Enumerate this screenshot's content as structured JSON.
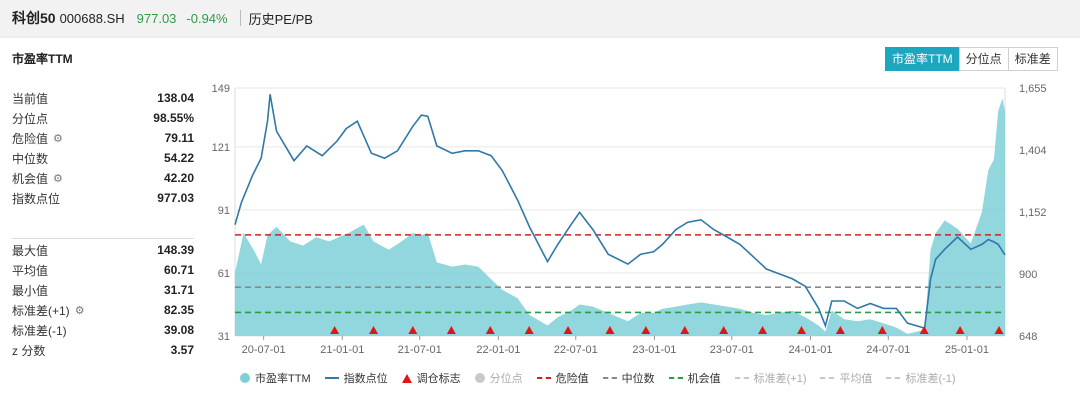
{
  "header": {
    "name": "科创50",
    "code": "000688.SH",
    "price": "977.03",
    "change": "-0.94%",
    "hist_label": "历史PE/PB"
  },
  "card": {
    "title": "市盈率TTM",
    "tabs": [
      "市盈率TTM",
      "分位点",
      "标准差"
    ],
    "active_tab": "市盈率TTM"
  },
  "stats_top": [
    {
      "label": "当前值",
      "value": "138.04",
      "gear": false
    },
    {
      "label": "分位点",
      "value": "98.55%",
      "gear": false
    },
    {
      "label": "危险值",
      "value": "79.11",
      "gear": true
    },
    {
      "label": "中位数",
      "value": "54.22",
      "gear": false
    },
    {
      "label": "机会值",
      "value": "42.20",
      "gear": true
    },
    {
      "label": "指数点位",
      "value": "977.03",
      "gear": false
    }
  ],
  "stats_bottom": [
    {
      "label": "最大值",
      "value": "148.39",
      "gear": false
    },
    {
      "label": "平均值",
      "value": "60.71",
      "gear": false
    },
    {
      "label": "最小值",
      "value": "31.71",
      "gear": false
    },
    {
      "label": "标准差(+1)",
      "value": "82.35",
      "gear": true
    },
    {
      "label": "标准差(-1)",
      "value": "39.08",
      "gear": false
    },
    {
      "label": "z 分数",
      "value": "3.57",
      "gear": false
    }
  ],
  "legend": [
    {
      "label": "市盈率TTM",
      "type": "dot",
      "color": "#7fcfd8",
      "dim": false
    },
    {
      "label": "指数点位",
      "type": "line",
      "color": "#2f78a8",
      "dim": false
    },
    {
      "label": "调仓标志",
      "type": "triangle",
      "color": "#e01515",
      "dim": false
    },
    {
      "label": "分位点",
      "type": "dot",
      "color": "#c8c8c8",
      "dim": true
    },
    {
      "label": "危险值",
      "type": "dash",
      "color": "#cc2222",
      "dim": false
    },
    {
      "label": "中位数",
      "type": "dash",
      "color": "#888888",
      "dim": false
    },
    {
      "label": "机会值",
      "type": "dash",
      "color": "#2e9b46",
      "dim": false
    },
    {
      "label": "标准差(+1)",
      "type": "dash",
      "color": "#c8c8c8",
      "dim": true
    },
    {
      "label": "平均值",
      "type": "dash",
      "color": "#c8c8c8",
      "dim": true
    },
    {
      "label": "标准差(-1)",
      "type": "dash",
      "color": "#c8c8c8",
      "dim": true
    }
  ],
  "chart_data": {
    "type": "area",
    "x_ticks": [
      "20-07-01",
      "21-01-01",
      "21-07-01",
      "22-01-01",
      "22-07-01",
      "23-01-01",
      "23-07-01",
      "24-01-01",
      "24-07-01",
      "25-01-01"
    ],
    "y_left_ticks": [
      31,
      61,
      91,
      121,
      149
    ],
    "y_right_ticks": [
      648,
      900,
      1152,
      1404,
      1655
    ],
    "y_left_range": [
      31,
      149
    ],
    "y_right_range": [
      648,
      1655
    ],
    "x_range": [
      "2020-04-25",
      "2025-03-31"
    ],
    "reference_lines": {
      "danger": 79.11,
      "median": 54.22,
      "opportunity": 42.2
    },
    "series": [
      {
        "name": "市盈率TTM",
        "axis": "left",
        "points": [
          [
            "2020-04-25",
            61
          ],
          [
            "2020-05-15",
            80
          ],
          [
            "2020-06-10",
            71
          ],
          [
            "2020-06-25",
            65
          ],
          [
            "2020-07-10",
            79
          ],
          [
            "2020-07-31",
            83
          ],
          [
            "2020-09-01",
            76
          ],
          [
            "2020-10-01",
            74
          ],
          [
            "2020-11-01",
            78
          ],
          [
            "2020-12-01",
            76
          ],
          [
            "2021-01-15",
            80
          ],
          [
            "2021-02-20",
            84
          ],
          [
            "2021-03-15",
            76
          ],
          [
            "2021-04-20",
            72
          ],
          [
            "2021-05-20",
            76
          ],
          [
            "2021-06-15",
            80
          ],
          [
            "2021-07-05",
            79
          ],
          [
            "2021-07-20",
            80
          ],
          [
            "2021-08-10",
            66
          ],
          [
            "2021-09-15",
            64
          ],
          [
            "2021-10-15",
            65
          ],
          [
            "2021-11-15",
            64
          ],
          [
            "2021-12-15",
            58
          ],
          [
            "2022-01-10",
            53
          ],
          [
            "2022-02-15",
            49
          ],
          [
            "2022-03-15",
            41
          ],
          [
            "2022-04-26",
            36
          ],
          [
            "2022-05-20",
            40
          ],
          [
            "2022-06-20",
            43
          ],
          [
            "2022-07-10",
            46
          ],
          [
            "2022-08-10",
            45
          ],
          [
            "2022-09-15",
            42
          ],
          [
            "2022-10-31",
            38
          ],
          [
            "2022-11-30",
            42
          ],
          [
            "2022-12-30",
            42
          ],
          [
            "2023-01-20",
            44
          ],
          [
            "2023-02-20",
            45
          ],
          [
            "2023-03-20",
            46
          ],
          [
            "2023-04-20",
            47
          ],
          [
            "2023-05-20",
            46
          ],
          [
            "2023-06-20",
            45
          ],
          [
            "2023-07-20",
            44
          ],
          [
            "2023-08-20",
            42
          ],
          [
            "2023-09-20",
            41
          ],
          [
            "2023-10-20",
            42
          ],
          [
            "2023-11-20",
            43
          ],
          [
            "2023-12-20",
            40
          ],
          [
            "2024-01-20",
            36
          ],
          [
            "2024-02-05",
            33
          ],
          [
            "2024-02-20",
            43
          ],
          [
            "2024-03-20",
            39
          ],
          [
            "2024-04-20",
            38
          ],
          [
            "2024-05-20",
            39
          ],
          [
            "2024-06-20",
            37
          ],
          [
            "2024-07-20",
            35
          ],
          [
            "2024-08-15",
            32
          ],
          [
            "2024-09-24",
            34
          ],
          [
            "2024-10-08",
            72
          ],
          [
            "2024-10-20",
            80
          ],
          [
            "2024-11-10",
            86
          ],
          [
            "2024-12-10",
            82
          ],
          [
            "2025-01-10",
            75
          ],
          [
            "2025-02-05",
            90
          ],
          [
            "2025-02-20",
            110
          ],
          [
            "2025-03-05",
            115
          ],
          [
            "2025-03-15",
            138
          ],
          [
            "2025-03-25",
            144
          ],
          [
            "2025-03-31",
            138
          ]
        ]
      },
      {
        "name": "指数点位",
        "axis": "right",
        "points": [
          [
            "2020-04-25",
            1100
          ],
          [
            "2020-05-10",
            1190
          ],
          [
            "2020-06-05",
            1300
          ],
          [
            "2020-06-25",
            1370
          ],
          [
            "2020-07-10",
            1520
          ],
          [
            "2020-07-16",
            1630
          ],
          [
            "2020-07-31",
            1480
          ],
          [
            "2020-09-10",
            1360
          ],
          [
            "2020-10-10",
            1420
          ],
          [
            "2020-11-15",
            1380
          ],
          [
            "2020-12-20",
            1440
          ],
          [
            "2021-01-10",
            1490
          ],
          [
            "2021-02-05",
            1520
          ],
          [
            "2021-03-10",
            1390
          ],
          [
            "2021-04-10",
            1370
          ],
          [
            "2021-05-10",
            1400
          ],
          [
            "2021-06-15",
            1500
          ],
          [
            "2021-07-05",
            1545
          ],
          [
            "2021-07-20",
            1540
          ],
          [
            "2021-08-10",
            1420
          ],
          [
            "2021-09-15",
            1390
          ],
          [
            "2021-10-15",
            1400
          ],
          [
            "2021-11-15",
            1400
          ],
          [
            "2021-12-15",
            1380
          ],
          [
            "2022-01-10",
            1320
          ],
          [
            "2022-02-15",
            1200
          ],
          [
            "2022-03-15",
            1090
          ],
          [
            "2022-04-26",
            950
          ],
          [
            "2022-05-20",
            1020
          ],
          [
            "2022-06-20",
            1100
          ],
          [
            "2022-07-10",
            1150
          ],
          [
            "2022-08-10",
            1080
          ],
          [
            "2022-09-15",
            980
          ],
          [
            "2022-10-31",
            940
          ],
          [
            "2022-11-30",
            980
          ],
          [
            "2022-12-30",
            990
          ],
          [
            "2023-01-20",
            1020
          ],
          [
            "2023-02-20",
            1080
          ],
          [
            "2023-03-20",
            1110
          ],
          [
            "2023-04-20",
            1120
          ],
          [
            "2023-05-20",
            1080
          ],
          [
            "2023-06-20",
            1050
          ],
          [
            "2023-07-20",
            1020
          ],
          [
            "2023-08-20",
            970
          ],
          [
            "2023-09-20",
            920
          ],
          [
            "2023-10-20",
            900
          ],
          [
            "2023-11-20",
            880
          ],
          [
            "2023-12-20",
            850
          ],
          [
            "2024-01-20",
            760
          ],
          [
            "2024-02-05",
            690
          ],
          [
            "2024-02-20",
            790
          ],
          [
            "2024-03-20",
            790
          ],
          [
            "2024-04-20",
            760
          ],
          [
            "2024-05-20",
            780
          ],
          [
            "2024-06-20",
            760
          ],
          [
            "2024-07-20",
            760
          ],
          [
            "2024-08-15",
            700
          ],
          [
            "2024-09-24",
            680
          ],
          [
            "2024-10-08",
            880
          ],
          [
            "2024-10-20",
            960
          ],
          [
            "2024-11-10",
            1000
          ],
          [
            "2024-12-10",
            1050
          ],
          [
            "2025-01-10",
            1000
          ],
          [
            "2025-02-05",
            1020
          ],
          [
            "2025-02-20",
            1040
          ],
          [
            "2025-03-05",
            1030
          ],
          [
            "2025-03-15",
            1020
          ],
          [
            "2025-03-31",
            977
          ]
        ]
      }
    ],
    "markers": [
      "2020-12-14",
      "2021-03-15",
      "2021-06-15",
      "2021-09-13",
      "2021-12-13",
      "2022-03-14",
      "2022-06-13",
      "2022-09-19",
      "2022-12-12",
      "2023-03-13",
      "2023-06-12",
      "2023-09-11",
      "2023-12-11",
      "2024-03-11",
      "2024-06-17",
      "2024-09-23",
      "2024-12-16",
      "2025-03-17"
    ],
    "marker_label": "调仓标志",
    "colors": {
      "area": "#7fcfd8",
      "line": "#2f78a8",
      "marker": "#e01515",
      "danger": "#cc2222",
      "median": "#888888",
      "opportunity": "#2e9b46"
    }
  }
}
